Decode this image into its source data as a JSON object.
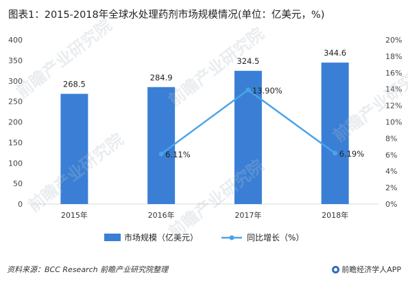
{
  "title": "图表1：2015-2018年全球水处理药剂市场规模情况(单位：亿美元，%)",
  "source": "资料来源：BCC Research 前瞻产业研究院整理",
  "app_label": "前瞻经济学人APP",
  "watermark": "前瞻产业研究院",
  "colors": {
    "bar": "#3a7fd5",
    "line": "#4aa3e8",
    "axis": "#d9d9d9"
  },
  "chart_data": {
    "type": "bar",
    "categories": [
      "2015年",
      "2016年",
      "2017年",
      "2018年"
    ],
    "series": [
      {
        "name": "市场规模（亿美元）",
        "type": "bar",
        "axis": "left",
        "values": [
          268.5,
          284.9,
          324.5,
          344.6
        ],
        "labels": [
          "268.5",
          "284.9",
          "324.5",
          "344.6"
        ]
      },
      {
        "name": "同比增长（%）",
        "type": "line",
        "axis": "right",
        "values": [
          null,
          6.11,
          13.9,
          6.19
        ],
        "labels": [
          "",
          "6.11%",
          "13.90%",
          "6.19%"
        ]
      }
    ],
    "ylim_left": [
      0,
      400
    ],
    "yticks_left": [
      "0",
      "50",
      "100",
      "150",
      "200",
      "250",
      "300",
      "350",
      "400"
    ],
    "ylim_right": [
      0,
      20
    ],
    "yticks_right": [
      "0%",
      "2%",
      "4%",
      "6%",
      "8%",
      "10%",
      "12%",
      "14%",
      "16%",
      "18%",
      "20%"
    ],
    "legend_position": "bottom",
    "grid": false
  }
}
